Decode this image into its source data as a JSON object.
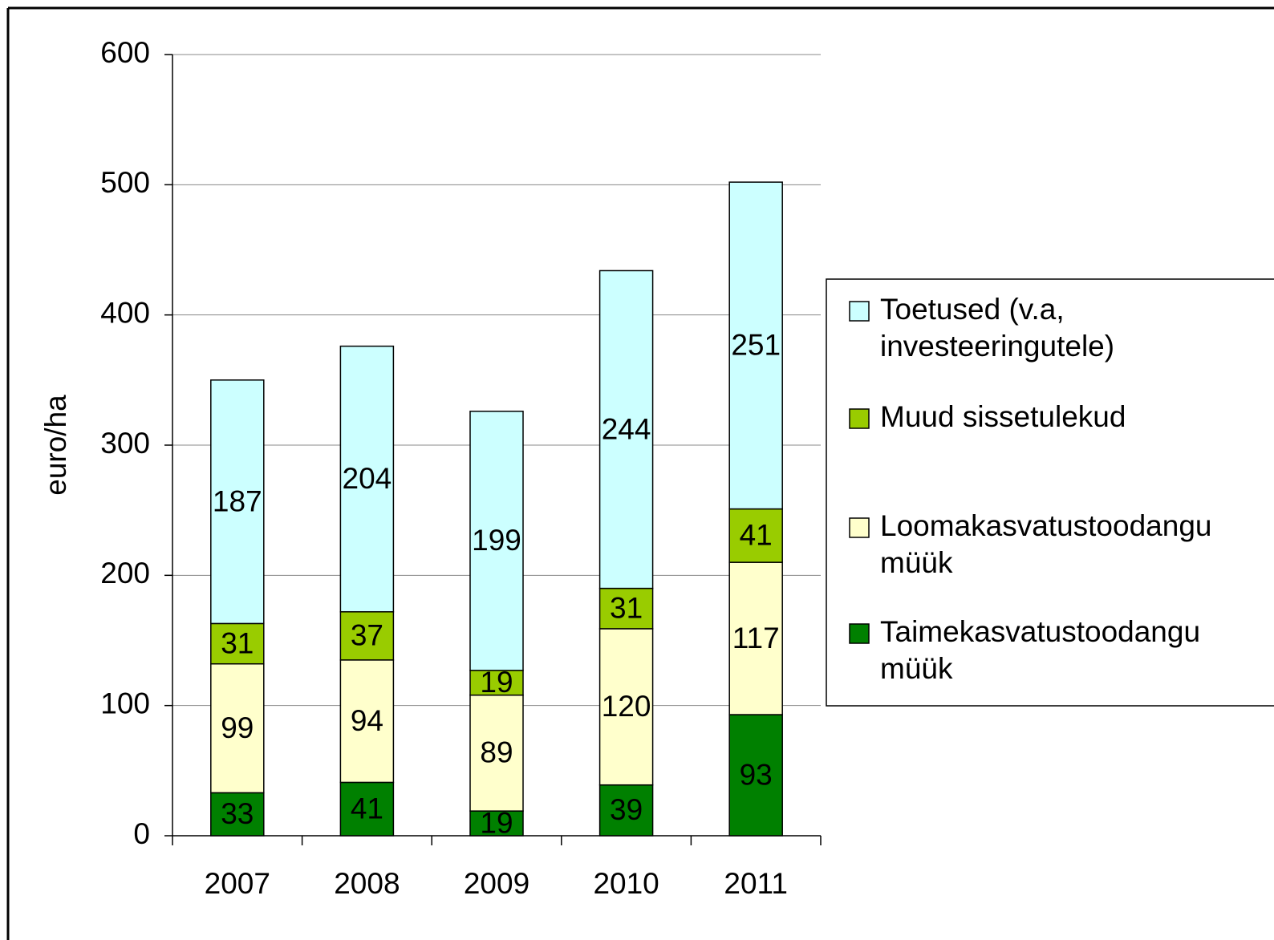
{
  "chart_data": {
    "type": "stacked_bar",
    "y_label": "euro/ha",
    "categories": [
      "2007",
      "2008",
      "2009",
      "2010",
      "2011"
    ],
    "series": [
      {
        "name": "Taimekasvatustoodangu müük",
        "color": "#008000",
        "values": [
          33,
          41,
          19,
          39,
          93
        ]
      },
      {
        "name": "Loomakasvatustoodangu müük",
        "color": "#ffffcc",
        "values": [
          99,
          94,
          89,
          120,
          117
        ]
      },
      {
        "name": "Muud sissetulekud",
        "color": "#99cc00",
        "values": [
          31,
          37,
          19,
          31,
          41
        ]
      },
      {
        "name": "Toetused (v.a, investeeringutele)",
        "color": "#ccffff",
        "values": [
          187,
          204,
          199,
          244,
          251
        ]
      }
    ],
    "ylim": [
      0,
      600
    ],
    "yticks": [
      0,
      100,
      200,
      300,
      400,
      500,
      600
    ],
    "grid": true,
    "legend": "right"
  }
}
